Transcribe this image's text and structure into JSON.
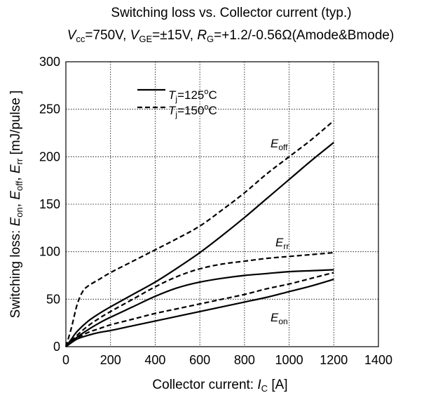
{
  "chart_data": {
    "type": "line",
    "title": {
      "line1": "Switching loss  vs.  Collector current  (typ.)",
      "vcc_symbol": "V",
      "vcc_sub": "cc",
      "vcc_value": "=750V, ",
      "vge_symbol": "V",
      "vge_sub": "GE",
      "vge_value": "=±15V, ",
      "rg_symbol": "R",
      "rg_sub": "G",
      "rg_value": "=+1.2/-0.56Ω(Amode&Bmode)"
    },
    "xlabel": {
      "text": "Collector current: ",
      "symbol": "I",
      "sub": "C",
      "unit": " [A]"
    },
    "ylabel": {
      "prefix": "Switching loss: ",
      "e1": "E",
      "s1": "on",
      "sep1": ", ",
      "e2": "E",
      "s2": "off",
      "sep2": ", ",
      "e3": "E",
      "s3": "rr",
      "unit": "  [mJ/pulse ]"
    },
    "xlim": [
      0,
      1400
    ],
    "ylim": [
      0,
      300
    ],
    "xticks": [
      "0",
      "200",
      "400",
      "600",
      "800",
      "1000",
      "1200",
      "1400"
    ],
    "yticks": [
      "0",
      "50",
      "100",
      "150",
      "200",
      "250",
      "300"
    ],
    "grid": true,
    "legend": {
      "position": "top-left",
      "entries": [
        {
          "symbol": "T",
          "sub": "j",
          "text": "=125",
          "sup": "o",
          "unit": "C",
          "style": "solid"
        },
        {
          "symbol": "T",
          "sub": "j",
          "text": "=150",
          "sup": "o",
          "unit": "C",
          "style": "dashed"
        }
      ]
    },
    "annotations": [
      {
        "symbol": "E",
        "sub": "off"
      },
      {
        "symbol": "E",
        "sub": "rr"
      },
      {
        "symbol": "E",
        "sub": "on"
      }
    ],
    "series": [
      {
        "curve": "E_off",
        "tj": 125,
        "style": "solid",
        "x": [
          0,
          25,
          50,
          100,
          150,
          200,
          300,
          400,
          500,
          600,
          700,
          800,
          900,
          1000,
          1100,
          1200
        ],
        "y": [
          0,
          8,
          16,
          27,
          35,
          42,
          55,
          68,
          83,
          99,
          117,
          136,
          156,
          176,
          196,
          215
        ]
      },
      {
        "curve": "E_off",
        "tj": 150,
        "style": "dashed",
        "x": [
          0,
          25,
          50,
          75,
          100,
          150,
          200,
          300,
          400,
          500,
          600,
          700,
          800,
          900,
          1000,
          1100,
          1200
        ],
        "y": [
          0,
          20,
          44,
          58,
          64,
          71,
          78,
          90,
          102,
          114,
          127,
          144,
          162,
          182,
          200,
          218,
          238
        ]
      },
      {
        "curve": "E_rr",
        "tj": 125,
        "style": "solid",
        "x": [
          0,
          50,
          100,
          150,
          200,
          300,
          400,
          500,
          600,
          700,
          800,
          900,
          1000,
          1100,
          1200
        ],
        "y": [
          0,
          10,
          18,
          25,
          31,
          42,
          53,
          62,
          68,
          72,
          75,
          77,
          79,
          80,
          81
        ]
      },
      {
        "curve": "E_rr",
        "tj": 150,
        "style": "dashed",
        "x": [
          0,
          50,
          100,
          150,
          200,
          300,
          400,
          500,
          600,
          700,
          800,
          900,
          1000,
          1100,
          1200
        ],
        "y": [
          0,
          12,
          22,
          30,
          37,
          50,
          63,
          74,
          82,
          87,
          90,
          93,
          95,
          97,
          99
        ]
      },
      {
        "curve": "E_on",
        "tj": 125,
        "style": "solid",
        "x": [
          0,
          50,
          100,
          150,
          200,
          300,
          400,
          500,
          600,
          700,
          800,
          900,
          1000,
          1100,
          1200
        ],
        "y": [
          0,
          8,
          12,
          15,
          17,
          22,
          27,
          32,
          37,
          42,
          47,
          52,
          58,
          64,
          71
        ]
      },
      {
        "curve": "E_on",
        "tj": 150,
        "style": "dashed",
        "x": [
          0,
          50,
          100,
          150,
          200,
          300,
          400,
          500,
          600,
          700,
          800,
          900,
          1000,
          1100,
          1200
        ],
        "y": [
          0,
          9,
          15,
          19,
          23,
          29,
          35,
          40,
          45,
          50,
          55,
          61,
          66,
          72,
          78
        ]
      }
    ]
  }
}
